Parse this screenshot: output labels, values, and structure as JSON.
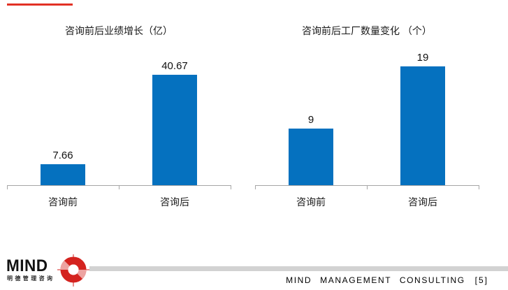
{
  "decor": {
    "top_rule_color": "#e23125",
    "footer_rule_color": "#d2d2d2",
    "axis_color": "#a6a6a6"
  },
  "chart_data": [
    {
      "type": "bar",
      "title": "咨询前后业绩增长（亿）",
      "categories": [
        "咨询前",
        "咨询后"
      ],
      "values": [
        7.66,
        40.67
      ],
      "value_labels": [
        "7.66",
        "40.67"
      ],
      "ylim": [
        0,
        45
      ],
      "bar_color": "#0571bf",
      "grid": false,
      "legend": false
    },
    {
      "type": "bar",
      "title": "咨询前后工厂数量变化 （个）",
      "categories": [
        "咨询前",
        "咨询后"
      ],
      "values": [
        9,
        19
      ],
      "value_labels": [
        "9",
        "19"
      ],
      "ylim": [
        0,
        21
      ],
      "bar_color": "#0571bf",
      "grid": false,
      "legend": false
    }
  ],
  "footer": {
    "logo_text": "MIND",
    "logo_subtext": "明德管理咨询",
    "logo_mark": "red-target-icon",
    "logo_red": "#d4231f",
    "logo_red_light": "#eda3a1",
    "text": "MIND MANAGEMENT CONSULTING",
    "page_number": "[5]"
  }
}
